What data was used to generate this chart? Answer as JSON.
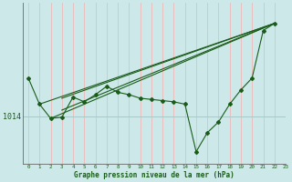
{
  "xlabel_label": "Graphe pression niveau de la mer (hPa)",
  "xlim": [
    -0.5,
    23
  ],
  "ylim": [
    1010.0,
    1023.5
  ],
  "y_tick_value": 1014,
  "bg_color": "#cce8e8",
  "grid_color_v": "#f0b8b8",
  "grid_color_h": "#a8c8c8",
  "line_color": "#1a5c1a",
  "ms": 2.0,
  "lw": 0.8,
  "main_x": [
    0,
    1,
    2,
    3,
    4,
    5,
    6,
    7,
    8,
    9,
    10,
    11,
    12,
    13,
    14,
    15,
    16,
    17,
    18,
    19,
    20,
    21,
    22
  ],
  "main_y": [
    1017.2,
    1015.0,
    1013.8,
    1013.9,
    1015.6,
    1015.2,
    1015.8,
    1016.5,
    1016.0,
    1015.8,
    1015.5,
    1015.4,
    1015.3,
    1015.2,
    1015.0,
    1011.0,
    1012.6,
    1013.5,
    1015.0,
    1016.2,
    1017.2,
    1021.2,
    1021.8
  ],
  "trend1_x": [
    1,
    22
  ],
  "trend1_y": [
    1015.0,
    1021.8
  ],
  "trend2_x": [
    2,
    22
  ],
  "trend2_y": [
    1013.8,
    1021.8
  ],
  "trend3_x": [
    3,
    22
  ],
  "trend3_y": [
    1014.5,
    1021.8
  ],
  "trend4_x": [
    3,
    22
  ],
  "trend4_y": [
    1015.5,
    1021.8
  ]
}
